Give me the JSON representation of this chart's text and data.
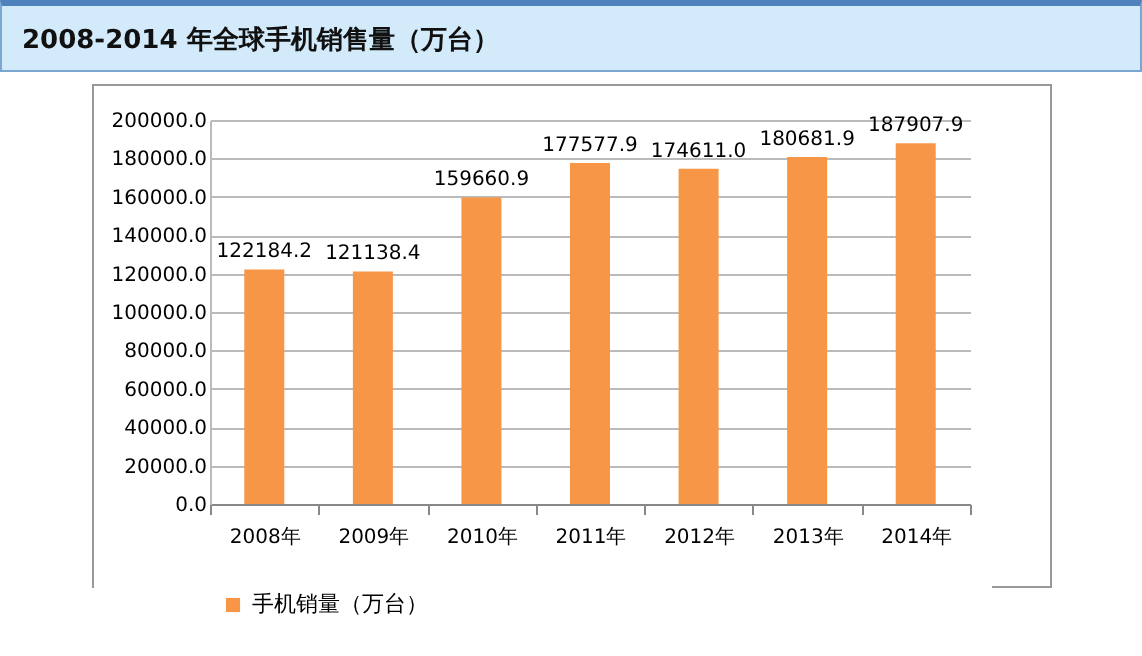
{
  "chart_data": {
    "type": "bar",
    "title": "2008-2014 年全球手机销售量（万台）",
    "categories": [
      "2008年",
      "2009年",
      "2010年",
      "2011年",
      "2012年",
      "2013年",
      "2014年"
    ],
    "series": [
      {
        "name": "手机销量（万台）",
        "color": "#f79646",
        "values": [
          122184.2,
          121138.4,
          159660.9,
          177577.9,
          174611.0,
          180681.9,
          187907.9
        ],
        "value_labels": [
          "122184.2",
          "121138.4",
          "159660.9",
          "177577.9",
          "174611.0",
          "180681.9",
          "187907.9"
        ]
      }
    ],
    "ylim": [
      0,
      200000
    ],
    "yticks": [
      {
        "value": 0,
        "label": "0.0"
      },
      {
        "value": 20000,
        "label": "20000.0"
      },
      {
        "value": 40000,
        "label": "40000.0"
      },
      {
        "value": 60000,
        "label": "60000.0"
      },
      {
        "value": 80000,
        "label": "80000.0"
      },
      {
        "value": 100000,
        "label": "100000.0"
      },
      {
        "value": 120000,
        "label": "120000.0"
      },
      {
        "value": 140000,
        "label": "140000.0"
      },
      {
        "value": 160000,
        "label": "160000.0"
      },
      {
        "value": 180000,
        "label": "180000.0"
      },
      {
        "value": 200000,
        "label": "200000.0"
      }
    ],
    "grid": "y",
    "legend": "bottom"
  }
}
